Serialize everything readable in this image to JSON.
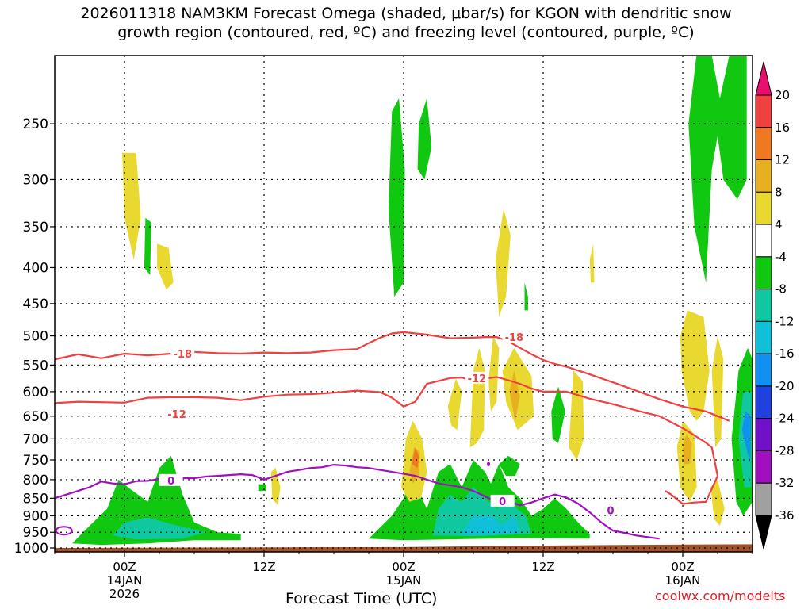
{
  "title_line1": "2026011318 NAM3KM Forecast Omega (shaded, μbar/s) for KGON with dendritic snow",
  "title_line2": "growth region (contoured, red, ºC) and freezing level (contoured, purple, ºC)",
  "credit": "coolwx.com/modelts",
  "chart_data": {
    "type": "heatmap",
    "x_title": "Forecast Time (UTC)",
    "x_axis": [
      {
        "hour": 6,
        "line1": "00Z",
        "line2": "14JAN",
        "line3": "2026"
      },
      {
        "hour": 18,
        "line1": "12Z",
        "line2": "",
        "line3": ""
      },
      {
        "hour": 30,
        "line1": "00Z",
        "line2": "15JAN",
        "line3": ""
      },
      {
        "hour": 42,
        "line1": "12Z",
        "line2": "",
        "line3": ""
      },
      {
        "hour": 54,
        "line1": "00Z",
        "line2": "16JAN",
        "line3": ""
      }
    ],
    "x_range_hours": [
      0,
      60
    ],
    "y_axis_pressure_hpa": [
      250,
      300,
      350,
      400,
      450,
      500,
      550,
      600,
      650,
      700,
      750,
      800,
      850,
      900,
      950,
      1000
    ],
    "y_range_hpa": [
      200,
      1013
    ],
    "y_scale": "log",
    "colorbar": {
      "labels": [
        "20",
        "16",
        "12",
        "8",
        "4",
        "-4",
        "-8",
        "-12",
        "-16",
        "-20",
        "-24",
        "-28",
        "-32",
        "-36"
      ],
      "colors": [
        "#e8106e",
        "#f04040",
        "#f07820",
        "#e8b020",
        "#e8d830",
        "#ffffff",
        "#10c810",
        "#10c8a0",
        "#10c0d8",
        "#1090f0",
        "#2040e0",
        "#7010c8",
        "#a010c0",
        "#a0a0a0",
        "#000000"
      ]
    },
    "series": [
      {
        "name": "-18",
        "color": "#f04040",
        "points": [
          [
            0,
            540
          ],
          [
            2,
            531
          ],
          [
            4,
            538
          ],
          [
            6,
            530
          ],
          [
            8,
            533
          ],
          [
            10,
            530
          ],
          [
            12,
            527
          ],
          [
            14,
            529
          ],
          [
            16,
            530
          ],
          [
            18,
            528
          ],
          [
            20,
            529
          ],
          [
            22,
            528
          ],
          [
            24,
            524
          ],
          [
            26,
            522
          ],
          [
            27,
            512
          ],
          [
            28,
            503
          ],
          [
            29,
            496
          ],
          [
            30,
            494
          ],
          [
            32,
            498
          ],
          [
            34,
            504
          ],
          [
            36,
            503
          ],
          [
            37,
            502
          ],
          [
            38,
            502
          ],
          [
            39,
            509
          ],
          [
            40,
            520
          ],
          [
            41,
            531
          ],
          [
            42,
            541
          ],
          [
            43,
            548
          ],
          [
            44,
            553
          ],
          [
            46,
            567
          ],
          [
            48,
            582
          ],
          [
            50,
            598
          ],
          [
            52,
            615
          ],
          [
            54,
            630
          ],
          [
            56,
            640
          ],
          [
            57,
            650
          ],
          [
            58,
            660
          ]
        ]
      },
      {
        "name": "-12",
        "color": "#f04040",
        "points": [
          [
            0,
            623
          ],
          [
            2,
            620
          ],
          [
            4,
            621
          ],
          [
            6,
            622
          ],
          [
            8,
            612
          ],
          [
            10,
            611
          ],
          [
            12,
            611
          ],
          [
            14,
            612
          ],
          [
            16,
            617
          ],
          [
            18,
            610
          ],
          [
            20,
            606
          ],
          [
            22,
            605
          ],
          [
            24,
            602
          ],
          [
            26,
            598
          ],
          [
            28,
            601
          ],
          [
            29,
            612
          ],
          [
            30,
            630
          ],
          [
            31,
            620
          ],
          [
            32,
            585
          ],
          [
            34,
            574
          ],
          [
            35,
            573
          ],
          [
            36,
            580
          ],
          [
            37,
            575
          ],
          [
            38,
            572
          ],
          [
            39,
            578
          ],
          [
            40,
            585
          ],
          [
            41,
            594
          ],
          [
            42,
            600
          ],
          [
            44,
            600
          ],
          [
            46,
            614
          ],
          [
            48,
            625
          ],
          [
            50,
            638
          ],
          [
            52,
            650
          ],
          [
            53,
            663
          ],
          [
            54,
            676
          ],
          [
            55,
            692
          ],
          [
            56,
            709
          ],
          [
            56.5,
            720
          ],
          [
            57,
            790
          ],
          [
            56,
            860
          ],
          [
            55,
            862
          ],
          [
            54,
            866
          ],
          [
            53,
            840
          ],
          [
            52.5,
            830
          ]
        ]
      },
      {
        "name": "0",
        "color": "#a010c0",
        "points": [
          [
            0,
            850
          ],
          [
            1,
            840
          ],
          [
            2,
            830
          ],
          [
            3,
            820
          ],
          [
            4,
            805
          ],
          [
            5,
            810
          ],
          [
            6,
            812
          ],
          [
            7,
            804
          ],
          [
            8,
            803
          ],
          [
            9,
            798
          ],
          [
            10,
            799
          ],
          [
            11,
            796
          ],
          [
            12,
            796
          ],
          [
            13,
            792
          ],
          [
            14,
            790
          ],
          [
            15,
            788
          ],
          [
            16,
            786
          ],
          [
            17,
            788
          ],
          [
            18,
            800
          ],
          [
            19,
            790
          ],
          [
            20,
            780
          ],
          [
            21,
            775
          ],
          [
            22,
            770
          ],
          [
            23,
            768
          ],
          [
            24,
            762
          ],
          [
            25,
            764
          ],
          [
            26,
            768
          ],
          [
            27,
            770
          ],
          [
            28,
            775
          ],
          [
            29,
            780
          ],
          [
            30,
            785
          ],
          [
            31,
            790
          ],
          [
            32,
            800
          ],
          [
            33,
            810
          ],
          [
            34,
            815
          ],
          [
            35,
            820
          ],
          [
            36,
            830
          ],
          [
            37,
            845
          ],
          [
            38,
            860
          ],
          [
            39,
            858
          ],
          [
            40,
            870
          ],
          [
            41,
            862
          ],
          [
            42,
            850
          ],
          [
            43,
            840
          ],
          [
            44,
            848
          ],
          [
            45,
            865
          ],
          [
            46,
            890
          ],
          [
            47,
            920
          ],
          [
            48,
            945
          ],
          [
            49,
            952
          ],
          [
            50,
            960
          ],
          [
            51,
            965
          ],
          [
            52,
            970
          ]
        ]
      }
    ],
    "freezing_level_label": "0",
    "dgz_labels": [
      "-18",
      "-12"
    ]
  }
}
